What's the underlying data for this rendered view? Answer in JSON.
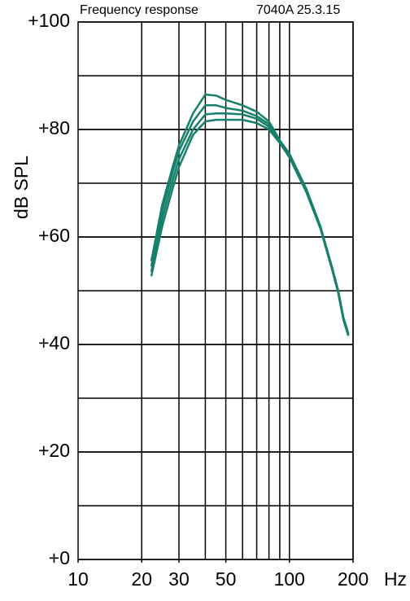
{
  "chart_data": {
    "type": "line",
    "title": "Frequency response",
    "subtitle": "7040A 25.3.15",
    "y_label": "dB SPL",
    "x_label": "Hz",
    "xscale": "log",
    "xlim": [
      10,
      200
    ],
    "xticks": [
      10,
      20,
      30,
      50,
      100,
      200
    ],
    "xgrid": [
      20,
      30,
      40,
      50,
      60,
      70,
      80,
      90,
      100,
      200
    ],
    "ylim": [
      0,
      100
    ],
    "yticks": [
      {
        "value": 0,
        "label": "+0"
      },
      {
        "value": 20,
        "label": "+20"
      },
      {
        "value": 40,
        "label": "+40"
      },
      {
        "value": 60,
        "label": "+60"
      },
      {
        "value": 80,
        "label": "+80"
      },
      {
        "value": 100,
        "label": "+100"
      }
    ],
    "ygrid": [
      10,
      20,
      30,
      40,
      50,
      60,
      70,
      80,
      90
    ],
    "grid": true,
    "x": [
      22.2,
      25,
      28,
      30,
      35,
      40,
      45,
      50,
      60,
      70,
      80,
      90,
      100,
      120,
      140,
      160,
      170,
      180,
      190
    ],
    "series": [
      {
        "color": "#17806a",
        "values": [
          55.5,
          66,
          73,
          77,
          83,
          86.5,
          86.3,
          85.5,
          84.5,
          83.3,
          81.5,
          78,
          75.5,
          69,
          62,
          54,
          50,
          45,
          42
        ]
      },
      {
        "color": "#17806a",
        "values": [
          54.5,
          65,
          72,
          76,
          81.5,
          84.5,
          84.5,
          84,
          83.5,
          82.5,
          81,
          78,
          75.3,
          68.8,
          62,
          54,
          50,
          45,
          42
        ]
      },
      {
        "color": "#17806a",
        "values": [
          53.5,
          63.5,
          70.5,
          74.5,
          80,
          82.8,
          83,
          83,
          82.8,
          82,
          80.5,
          77.8,
          75,
          68.6,
          61.8,
          53.8,
          49.8,
          44.8,
          41.8
        ]
      },
      {
        "color": "#17806a",
        "values": [
          52.7,
          62,
          69,
          73,
          79,
          81.5,
          81.8,
          81.8,
          81.8,
          81.2,
          80,
          77.5,
          74.8,
          68.4,
          61.6,
          53.6,
          49.6,
          44.6,
          41.6
        ]
      }
    ]
  }
}
